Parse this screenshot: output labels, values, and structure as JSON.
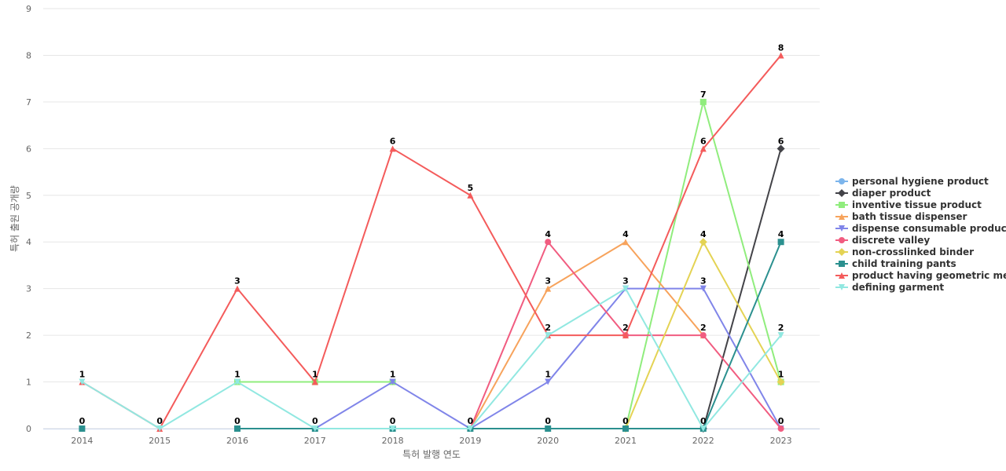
{
  "chart_data": {
    "type": "line",
    "xlabel": "특허 발행 연도",
    "ylabel": "특허 출원 공개량",
    "ylim": [
      0,
      9
    ],
    "y_ticks": [
      "0",
      "1",
      "2",
      "3",
      "4",
      "5",
      "6",
      "7",
      "8",
      "9"
    ],
    "categories": [
      "2014",
      "2015",
      "2016",
      "2017",
      "2018",
      "2019",
      "2020",
      "2021",
      "2022",
      "2023"
    ],
    "grid": true,
    "legend_position": "right",
    "series": [
      {
        "name": "personal hygiene product",
        "color": "#7cb5ec",
        "marker": "circle",
        "values": [
          null,
          null,
          null,
          null,
          null,
          null,
          null,
          null,
          null,
          null
        ]
      },
      {
        "name": "diaper product",
        "color": "#434348",
        "marker": "diamond",
        "values": [
          null,
          null,
          null,
          null,
          null,
          null,
          null,
          null,
          0,
          6
        ]
      },
      {
        "name": "inventive tissue product",
        "color": "#90ed7d",
        "marker": "square",
        "values": [
          null,
          null,
          1,
          1,
          1,
          null,
          null,
          0,
          7,
          1
        ]
      },
      {
        "name": "bath tissue dispenser",
        "color": "#f7a35c",
        "marker": "triangle",
        "values": [
          null,
          null,
          null,
          null,
          null,
          0,
          3,
          4,
          2,
          null
        ]
      },
      {
        "name": "dispense consumable product",
        "color": "#8085e9",
        "marker": "triangle-down",
        "values": [
          null,
          null,
          null,
          0,
          1,
          0,
          1,
          3,
          3,
          0
        ]
      },
      {
        "name": "discrete valley",
        "color": "#f15c80",
        "marker": "circle",
        "values": [
          null,
          null,
          null,
          null,
          null,
          0,
          4,
          2,
          2,
          0
        ]
      },
      {
        "name": "non-crosslinked binder",
        "color": "#e4d354",
        "marker": "diamond",
        "values": [
          null,
          null,
          null,
          null,
          null,
          null,
          null,
          0,
          4,
          1
        ]
      },
      {
        "name": "child training pants",
        "color": "#2b908f",
        "marker": "square",
        "values": [
          0,
          null,
          0,
          0,
          0,
          0,
          0,
          0,
          0,
          4
        ]
      },
      {
        "name": "product having geometric me...",
        "color": "#f45b5b",
        "marker": "triangle",
        "values": [
          1,
          0,
          3,
          1,
          6,
          5,
          2,
          2,
          6,
          8
        ]
      },
      {
        "name": "defining garment",
        "color": "#91e8e1",
        "marker": "triangle-down",
        "values": [
          1,
          0,
          1,
          0,
          0,
          0,
          2,
          3,
          0,
          2
        ]
      }
    ],
    "data_labels": [
      {
        "x": "2014",
        "y": 1,
        "text": "1"
      },
      {
        "x": "2014",
        "y": 0,
        "text": "0"
      },
      {
        "x": "2015",
        "y": 0,
        "text": "0"
      },
      {
        "x": "2016",
        "y": 3,
        "text": "3"
      },
      {
        "x": "2016",
        "y": 1,
        "text": "1"
      },
      {
        "x": "2016",
        "y": 0,
        "text": "0"
      },
      {
        "x": "2017",
        "y": 1,
        "text": "1"
      },
      {
        "x": "2017",
        "y": 0,
        "text": "0"
      },
      {
        "x": "2018",
        "y": 6,
        "text": "6"
      },
      {
        "x": "2018",
        "y": 1,
        "text": "1"
      },
      {
        "x": "2018",
        "y": 0,
        "text": "0"
      },
      {
        "x": "2019",
        "y": 5,
        "text": "5"
      },
      {
        "x": "2019",
        "y": 0,
        "text": "0"
      },
      {
        "x": "2020",
        "y": 4,
        "text": "4"
      },
      {
        "x": "2020",
        "y": 3,
        "text": "3"
      },
      {
        "x": "2020",
        "y": 2,
        "text": "2"
      },
      {
        "x": "2020",
        "y": 1,
        "text": "1"
      },
      {
        "x": "2020",
        "y": 0,
        "text": "0"
      },
      {
        "x": "2021",
        "y": 4,
        "text": "4"
      },
      {
        "x": "2021",
        "y": 3,
        "text": "3"
      },
      {
        "x": "2021",
        "y": 2,
        "text": "2"
      },
      {
        "x": "2021",
        "y": 0,
        "text": "0"
      },
      {
        "x": "2022",
        "y": 7,
        "text": "7"
      },
      {
        "x": "2022",
        "y": 6,
        "text": "6"
      },
      {
        "x": "2022",
        "y": 4,
        "text": "4"
      },
      {
        "x": "2022",
        "y": 3,
        "text": "3"
      },
      {
        "x": "2022",
        "y": 2,
        "text": "2"
      },
      {
        "x": "2022",
        "y": 0,
        "text": "0"
      },
      {
        "x": "2023",
        "y": 8,
        "text": "8"
      },
      {
        "x": "2023",
        "y": 6,
        "text": "6"
      },
      {
        "x": "2023",
        "y": 4,
        "text": "4"
      },
      {
        "x": "2023",
        "y": 2,
        "text": "2"
      },
      {
        "x": "2023",
        "y": 1,
        "text": "1"
      },
      {
        "x": "2023",
        "y": 0,
        "text": "0"
      }
    ]
  }
}
